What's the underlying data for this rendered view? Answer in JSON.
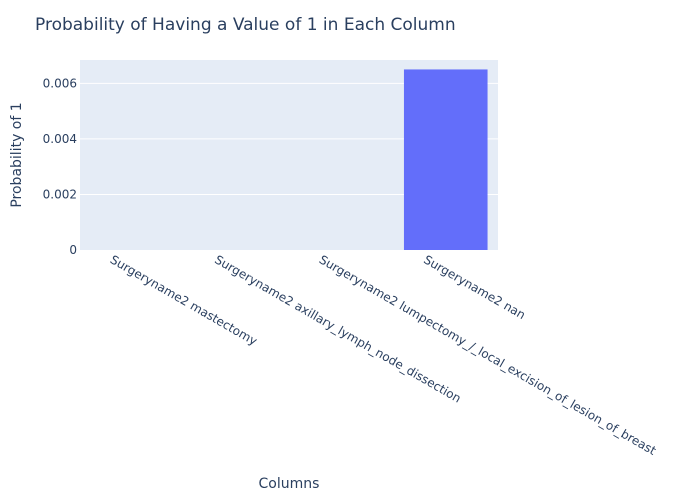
{
  "chart_data": {
    "type": "bar",
    "title": "Probability of Having a Value of 1 in Each Column",
    "xlabel": "Columns",
    "ylabel": "Probability of 1",
    "categories": [
      "Surgeryname2 mastectomy",
      "Surgeryname2 axillary_lymph_node_dissection",
      "Surgeryname2 lumpectomy_/_local_excision_of_lesion_of_breast",
      "Surgeryname2 nan"
    ],
    "values": [
      0,
      0,
      0,
      0.0065
    ],
    "ylim": [
      0,
      0.00684
    ],
    "yticks": [
      0,
      0.002,
      0.004,
      0.006
    ],
    "ytick_labels": [
      "0",
      "0.002",
      "0.004",
      "0.006"
    ],
    "grid": true,
    "legend": "none",
    "colors": {
      "bar": "#636efa",
      "plot_bg": "#e5ecf6",
      "grid": "#ffffff",
      "text": "#2a3f5f"
    }
  }
}
